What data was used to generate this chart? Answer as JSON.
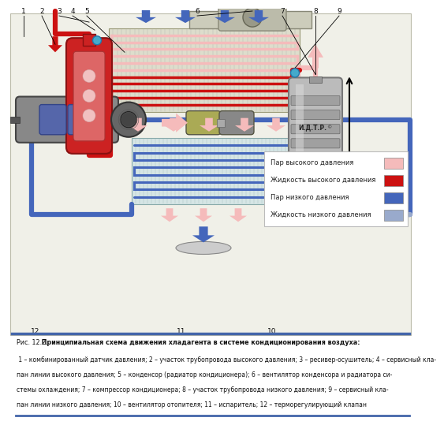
{
  "title_normal": "Рис. 12.2.",
  "title_bold": " Принципиальная схема движения хладагента в системе кондиционирования воздуха:",
  "caption": " 1 – комбинированный датчик давления; 2 – участок трубопровода высокого давления; 3 – ресивер-осушитель; 4 – сервисный клапан линии высокого давления; 5 – конденсор (радиатор кондиционера); 6 – вентилятор конденсора и радиатора системы охлаждения; 7 – компрессор кондиционера; 8 – участок трубопровода низкого давления; 9 – сервисный клапан линии низкого давления; 10 – вентилятор отопителя; 11 – испаритель; 12 – терморегулирующий клапан",
  "legend_items": [
    {
      "label": "Пар высокого давления",
      "color": "#F5BBBB"
    },
    {
      "label": "Жидкость высокого давления",
      "color": "#CC1111"
    },
    {
      "label": "Пар низкого давления",
      "color": "#4466BB"
    },
    {
      "label": "Жидкость низкого давления",
      "color": "#99AACC"
    }
  ],
  "bg_color": "#FFFFFF",
  "hp_vap": "#F5BBBB",
  "hp_liq": "#CC1111",
  "lp_vap": "#4466BB",
  "lp_liq": "#99AACC",
  "pipe_lw": 4.5
}
